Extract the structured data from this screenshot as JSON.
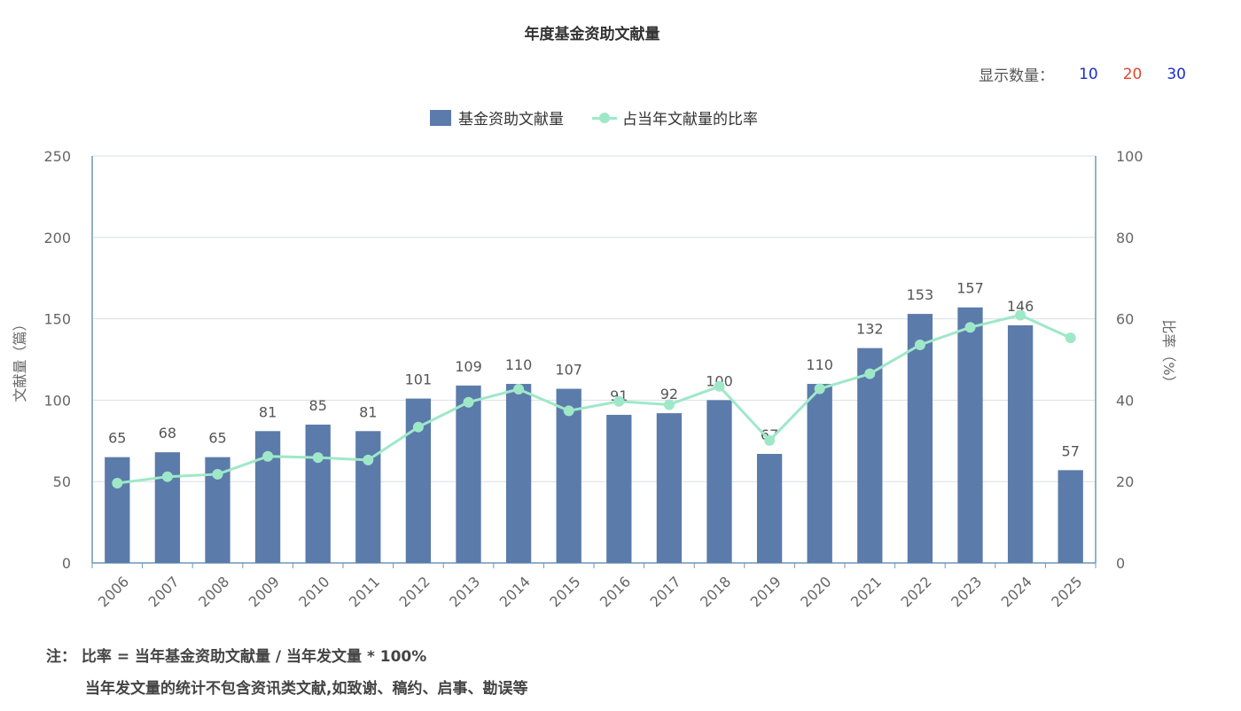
{
  "header": {
    "title": "年度基金资助文献量",
    "show_count_label": "显示数量：",
    "show_count_options": [
      {
        "label": "10",
        "color": "#1a2fcf"
      },
      {
        "label": "20",
        "color": "#e0462f"
      },
      {
        "label": "30",
        "color": "#1a2fcf"
      }
    ]
  },
  "notes": {
    "line1": "注：  比率 = 当年基金资助文献量 / 当年发文量 * 100%",
    "line2": "当年发文量的统计不包含资讯类文献,如致谢、稿约、启事、勘误等"
  },
  "chart_data": {
    "type": "bar+line",
    "title": "年度基金资助文献量",
    "categories": [
      "2006",
      "2007",
      "2008",
      "2009",
      "2010",
      "2011",
      "2012",
      "2013",
      "2014",
      "2015",
      "2016",
      "2017",
      "2018",
      "2019",
      "2020",
      "2021",
      "2022",
      "2023",
      "2024",
      "2025"
    ],
    "series": [
      {
        "name": "基金资助文献量",
        "type": "bar",
        "axis": "left",
        "color": "#5b7bab",
        "values": [
          65,
          68,
          65,
          81,
          85,
          81,
          101,
          109,
          110,
          107,
          91,
          92,
          100,
          67,
          110,
          132,
          153,
          157,
          146,
          57
        ]
      },
      {
        "name": "占当年文献量的比率",
        "type": "line",
        "axis": "right",
        "color": "#9ee8c8",
        "values": [
          19.6,
          21.2,
          21.8,
          26.2,
          25.9,
          25.3,
          33.4,
          39.5,
          42.7,
          37.4,
          39.7,
          38.9,
          43.4,
          30.1,
          42.8,
          46.5,
          53.6,
          57.9,
          60.9,
          55.3
        ]
      }
    ],
    "ylabel_left": "文献量（篇）",
    "ylabel_right": "比率（%）",
    "ylim_left": [
      0,
      250
    ],
    "ylim_right": [
      0,
      100
    ],
    "yticks_left": [
      0,
      50,
      100,
      150,
      200,
      250
    ],
    "yticks_right": [
      0,
      20,
      40,
      60,
      80,
      100
    ],
    "grid": true,
    "legend_position": "top-center"
  }
}
